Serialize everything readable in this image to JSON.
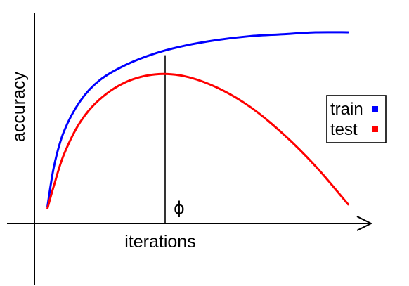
{
  "chart_data": {
    "type": "line",
    "title": "",
    "xlabel": "iterations",
    "ylabel": "accuracy",
    "xlim": [
      0,
      1
    ],
    "ylim": [
      0,
      1
    ],
    "grid": false,
    "ticks": false,
    "legend_position": "right",
    "series": [
      {
        "name": "train",
        "color": "#0000ff",
        "points": [
          [
            0.04,
            0.09
          ],
          [
            0.06,
            0.3
          ],
          [
            0.09,
            0.48
          ],
          [
            0.14,
            0.64
          ],
          [
            0.2,
            0.75
          ],
          [
            0.28,
            0.83
          ],
          [
            0.37,
            0.89
          ],
          [
            0.46,
            0.93
          ],
          [
            0.56,
            0.96
          ],
          [
            0.66,
            0.98
          ],
          [
            0.76,
            0.99
          ],
          [
            0.86,
            1.0
          ],
          [
            0.96,
            1.0
          ]
        ]
      },
      {
        "name": "test",
        "color": "#ff0000",
        "points": [
          [
            0.04,
            0.08
          ],
          [
            0.06,
            0.2
          ],
          [
            0.09,
            0.36
          ],
          [
            0.14,
            0.53
          ],
          [
            0.2,
            0.65
          ],
          [
            0.28,
            0.74
          ],
          [
            0.37,
            0.78
          ],
          [
            0.46,
            0.77
          ],
          [
            0.56,
            0.71
          ],
          [
            0.66,
            0.61
          ],
          [
            0.76,
            0.47
          ],
          [
            0.86,
            0.3
          ],
          [
            0.96,
            0.1
          ]
        ]
      }
    ],
    "annotations": [
      {
        "label": "ϕ",
        "x": 0.4,
        "y_from": 0.0,
        "y_to": 0.88
      }
    ]
  }
}
